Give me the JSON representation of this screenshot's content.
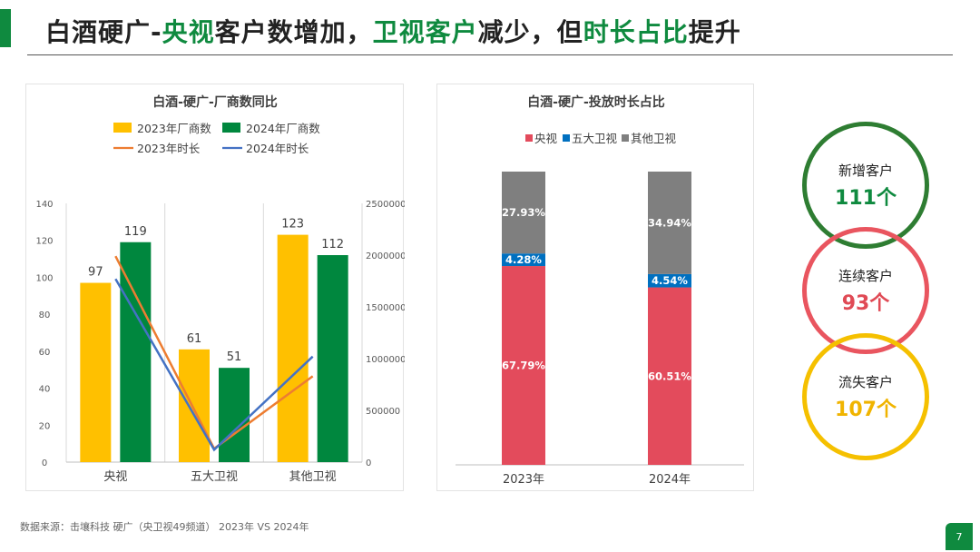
{
  "header": {
    "title_parts": [
      "白酒硬广-",
      "央视",
      "客户数增加，",
      "卫视客户",
      "减少，但",
      "时长占比",
      "提升"
    ]
  },
  "chart_data": [
    {
      "type": "bar",
      "title": "白酒-硬广-厂商数同比",
      "categories": [
        "央视",
        "五大卫视",
        "其他卫视"
      ],
      "series": [
        {
          "name": "2023年厂商数",
          "values": [
            97,
            61,
            123
          ],
          "color": "#ffc000",
          "axis": "left"
        },
        {
          "name": "2024年厂商数",
          "values": [
            119,
            51,
            112
          ],
          "color": "#00873e",
          "axis": "left"
        }
      ],
      "line_series": [
        {
          "name": "2023年时长",
          "values": [
            1990000,
            130000,
            830000
          ],
          "color": "#ed7d31",
          "axis": "right"
        },
        {
          "name": "2024年时长",
          "values": [
            1770000,
            120000,
            1020000
          ],
          "color": "#4472c4",
          "axis": "right"
        }
      ],
      "ylim_left": [
        0,
        140
      ],
      "yticks_left": [
        0,
        20,
        40,
        60,
        80,
        100,
        120,
        140
      ],
      "ylim_right": [
        0,
        2500000
      ],
      "yticks_right": [
        0,
        500000,
        1000000,
        1500000,
        2000000,
        2500000
      ],
      "gridlines": "vertical-category"
    },
    {
      "type": "bar",
      "stacked": true,
      "percent": true,
      "title": "白酒-硬广-投放时长占比",
      "categories": [
        "2023年",
        "2024年"
      ],
      "series": [
        {
          "name": "央视",
          "values": [
            67.79,
            60.51
          ],
          "labels": [
            "67.79%",
            "60.51%"
          ],
          "color": "#e34b5c"
        },
        {
          "name": "五大卫视",
          "values": [
            4.28,
            4.54
          ],
          "labels": [
            "4.28%",
            "4.54%"
          ],
          "color": "#0070c0"
        },
        {
          "name": "其他卫视",
          "values": [
            27.93,
            34.94
          ],
          "labels": [
            "27.93%",
            "34.94%"
          ],
          "color": "#7f7f7f"
        }
      ]
    }
  ],
  "kpis": [
    {
      "label": "新增客户",
      "value": "111个"
    },
    {
      "label": "连续客户",
      "value": "93个"
    },
    {
      "label": "流失客户",
      "value": "107个"
    }
  ],
  "footer": {
    "source": "数据来源：击壤科技  硬广（央卫视49频道）  2023年 VS 2024年",
    "page": "7"
  }
}
